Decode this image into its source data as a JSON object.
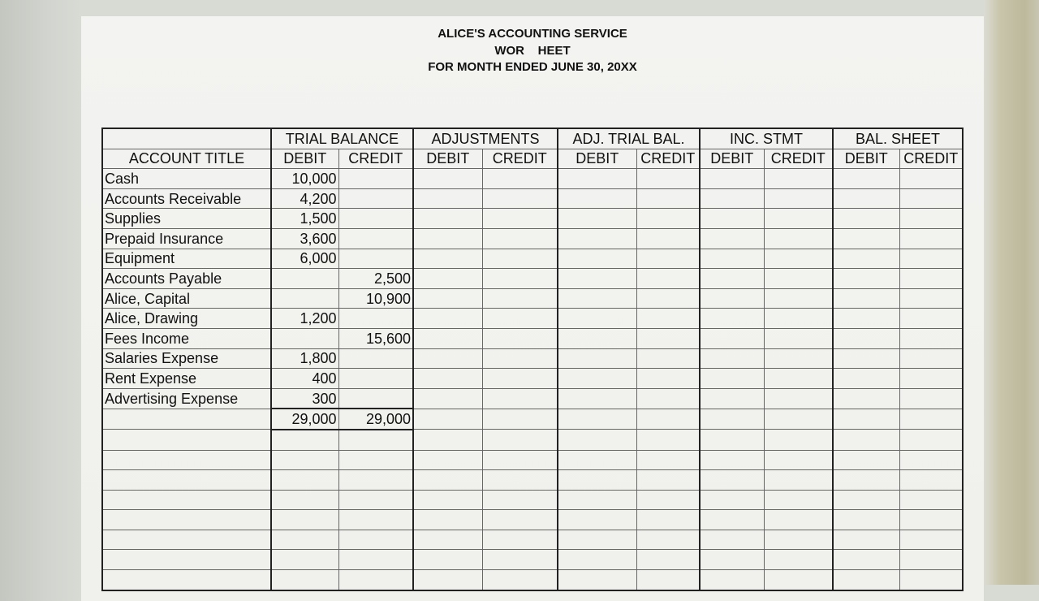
{
  "header": {
    "company": "ALICE'S ACCOUNTING SERVICE",
    "title": "WOR    HEET",
    "period": "FOR MONTH ENDED JUNE 30, 20XX"
  },
  "columns": {
    "account_title": "ACCOUNT TITLE",
    "groups": [
      "TRIAL BALANCE",
      "ADJUSTMENTS",
      "ADJ. TRIAL BAL.",
      "INC. STMT",
      "BAL. SHEET"
    ],
    "debit": "DEBIT",
    "credit": "CREDIT"
  },
  "rows": [
    {
      "account": "Cash",
      "debit": "10,000",
      "credit": ""
    },
    {
      "account": "Accounts Receivable",
      "debit": "4,200",
      "credit": ""
    },
    {
      "account": "Supplies",
      "debit": "1,500",
      "credit": ""
    },
    {
      "account": "Prepaid Insurance",
      "debit": "3,600",
      "credit": ""
    },
    {
      "account": "Equipment",
      "debit": "6,000",
      "credit": ""
    },
    {
      "account": "Accounts Payable",
      "debit": "",
      "credit": "2,500"
    },
    {
      "account": "Alice, Capital",
      "debit": "",
      "credit": "10,900"
    },
    {
      "account": "Alice, Drawing",
      "debit": "1,200",
      "credit": ""
    },
    {
      "account": "Fees Income",
      "debit": "",
      "credit": "15,600"
    },
    {
      "account": "Salaries Expense",
      "debit": "1,800",
      "credit": ""
    },
    {
      "account": "Rent Expense",
      "debit": "400",
      "credit": ""
    },
    {
      "account": "Advertising Expense",
      "debit": "300",
      "credit": ""
    }
  ],
  "totals": {
    "debit": "29,000",
    "credit": "29,000"
  }
}
